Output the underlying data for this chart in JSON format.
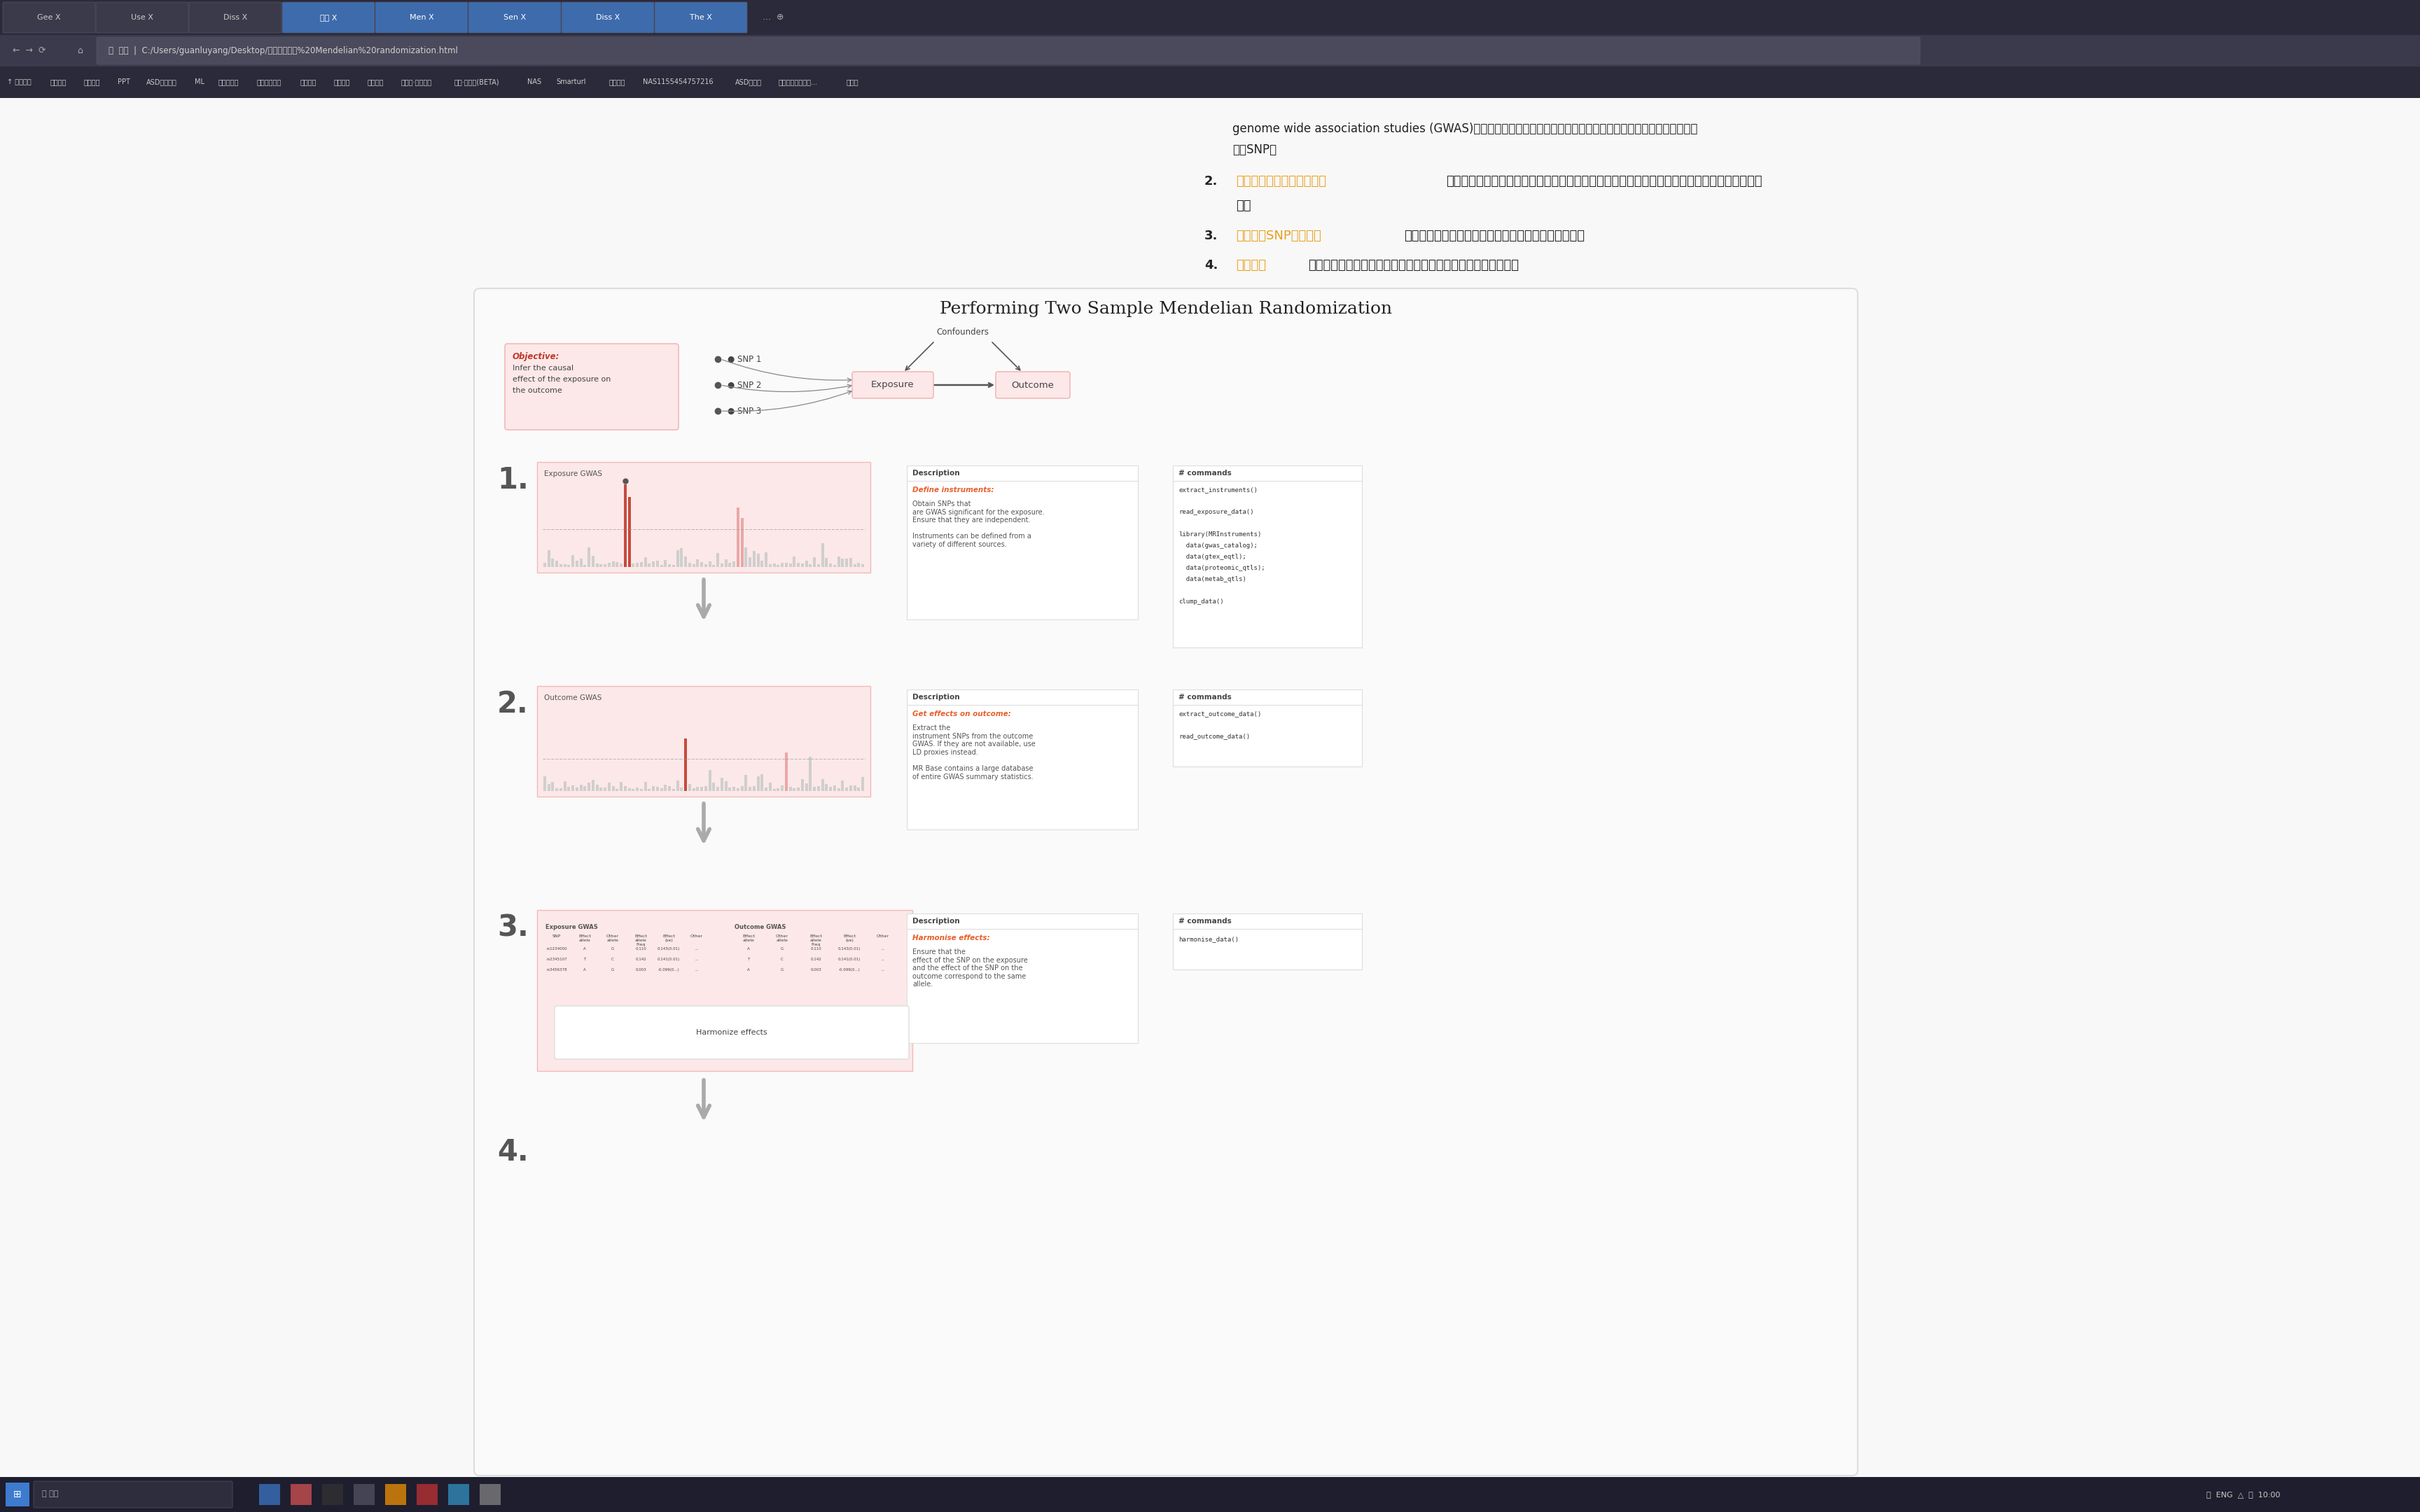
{
  "title": "Performing Two Sample Mendelian Randomization",
  "browser_url": "C:/Users/guanluyang/Desktop/孟德尔随机化%20Mendelian%20randomization.html",
  "tab_names": [
    "Gee X",
    "Use X",
    "Diss X",
    "个人 X",
    "Men X",
    "Sen X",
    "Diss X",
    "The X"
  ],
  "bookmarks": [
    "视频直播",
    "英语学习",
    "PPT",
    "ASD国外组织",
    "ML",
    "精神科时代",
    "南京医科大学"
  ],
  "bg_browser_dark": "#2b2b3b",
  "bg_page": "#f0f0f0",
  "bg_card": "#fefefe",
  "bg_pink": "#fce8e8",
  "color_border_pink": "#f5b8b8",
  "color_border_gray": "#dddddd",
  "color_red": "#c0392b",
  "color_orange_text": "#e8602c",
  "color_orange_nav": "#e8a020",
  "color_dark": "#222222",
  "color_mid": "#555555",
  "color_tab_active": "#3d6bac",
  "step1_desc_title": "Define instruments:",
  "step1_desc_body": "Obtain SNPs that\nare GWAS significant for the exposure.\nEnsure that they are independent.\n\nInstruments can be defined from a\nvariety of different sources.",
  "step1_cmds": [
    "extract_instruments()",
    "",
    "read_exposure_data()",
    "",
    "library(MRInstruments)",
    "  data(gwas_catalog);",
    "  data(gtex_eqtl);",
    "  data(proteomic_qtls);",
    "  data(metab_qtls)",
    "",
    "clump_data()"
  ],
  "step2_desc_title": "Get effects on outcome:",
  "step2_desc_body": "Extract the\ninstrument SNPs from the outcome\nGWAS. If they are not available, use\nLD proxies instead.\n\nMR Base contains a large database\nof entire GWAS summary statistics.",
  "step2_cmds": [
    "extract_outcome_data()",
    "",
    "read_outcome_data()"
  ],
  "step3_desc_title": "Harmonise effects:",
  "step3_desc_body": "Ensure that the\neffect of the SNP on the exposure\nand the effect of the SNP on the\noutcome correspond to the same\nallele.",
  "step3_cmds": [
    "harmonise_data()"
  ],
  "step4_num": "4.",
  "gwas_bar_gray": "#cccccc",
  "gwas_bar_pink": "#e8a0a0",
  "gwas_bar_red": "#c0392b",
  "arrow_down_color": "#bbbbbb",
  "panel_header": "Description",
  "cmd_header": "# commands"
}
